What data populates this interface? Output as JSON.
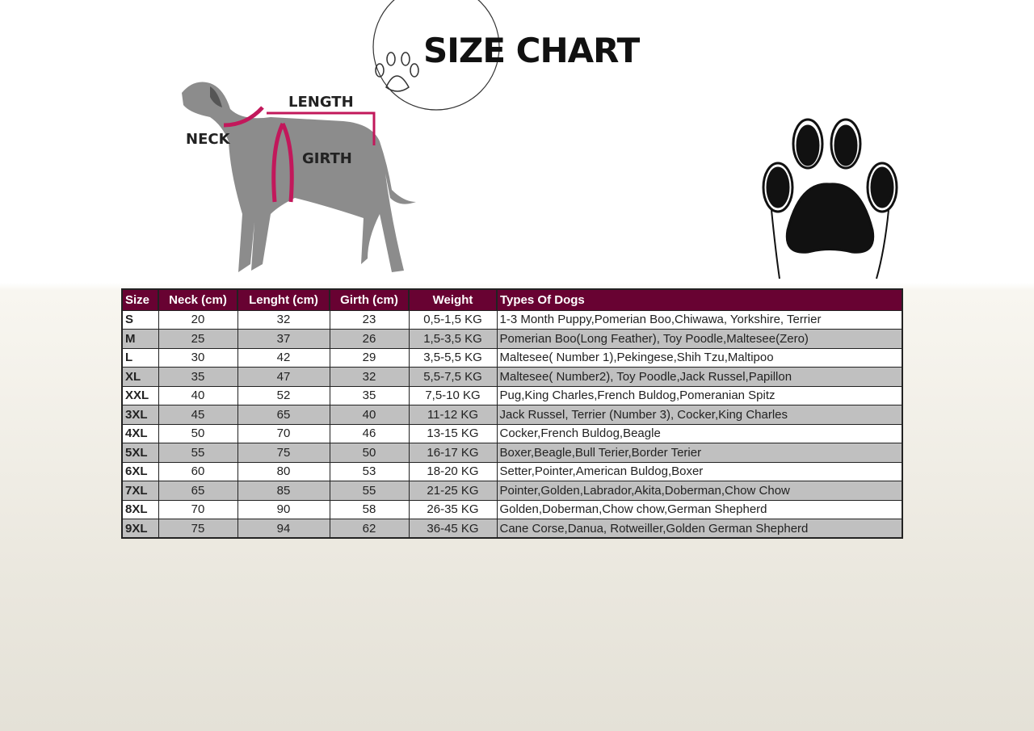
{
  "header": {
    "title": "SIZE CHART"
  },
  "diagram": {
    "neck": "NECK",
    "length": "LENGTH",
    "girth": "GIRTH"
  },
  "accent": "#680232",
  "table": {
    "columns": [
      "Size",
      "Neck (cm)",
      "Lenght (cm)",
      "Girth (cm)",
      "Weight",
      "Types Of Dogs"
    ],
    "rows": [
      [
        "S",
        "20",
        "32",
        "23",
        "0,5-1,5 KG",
        "1-3 Month Puppy,Pomerian Boo,Chiwawa, Yorkshire, Terrier"
      ],
      [
        "M",
        "25",
        "37",
        "26",
        "1,5-3,5 KG",
        "Pomerian Boo(Long Feather), Toy Poodle,Maltesee(Zero)"
      ],
      [
        "L",
        "30",
        "42",
        "29",
        "3,5-5,5 KG",
        "Maltesee( Number 1),Pekingese,Shih Tzu,Maltipoo"
      ],
      [
        "XL",
        "35",
        "47",
        "32",
        "5,5-7,5 KG",
        "Maltesee( Number2), Toy Poodle,Jack Russel,Papillon"
      ],
      [
        "XXL",
        "40",
        "52",
        "35",
        "7,5-10 KG",
        "Pug,King Charles,French Buldog,Pomeranian Spitz"
      ],
      [
        "3XL",
        "45",
        "65",
        "40",
        "11-12 KG",
        "Jack Russel, Terrier (Number 3), Cocker,King Charles"
      ],
      [
        "4XL",
        "50",
        "70",
        "46",
        "13-15 KG",
        "Cocker,French Buldog,Beagle"
      ],
      [
        "5XL",
        "55",
        "75",
        "50",
        "16-17 KG",
        "Boxer,Beagle,Bull Terier,Border Terier"
      ],
      [
        "6XL",
        "60",
        "80",
        "53",
        "18-20 KG",
        "Setter,Pointer,American Buldog,Boxer"
      ],
      [
        "7XL",
        "65",
        "85",
        "55",
        "21-25 KG",
        "Pointer,Golden,Labrador,Akita,Doberman,Chow Chow"
      ],
      [
        "8XL",
        "70",
        "90",
        "58",
        "26-35 KG",
        "Golden,Doberman,Chow chow,German Shepherd"
      ],
      [
        "9XL",
        "75",
        "94",
        "62",
        "36-45 KG",
        "Cane Corse,Danua, Rotweiller,Golden German Shepherd"
      ]
    ]
  }
}
